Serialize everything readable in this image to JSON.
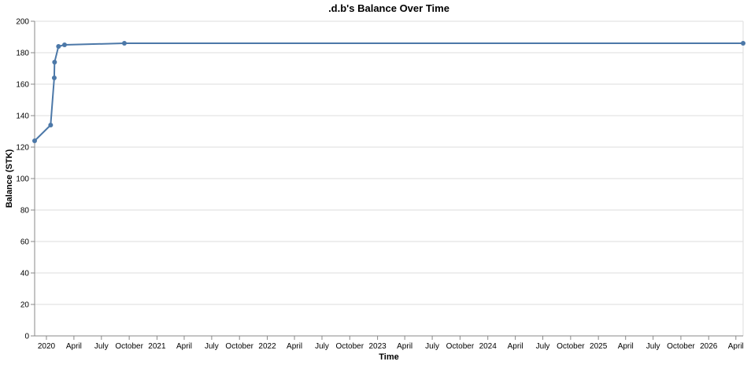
{
  "chart_data": {
    "type": "line",
    "title": ".d.b's Balance Over Time",
    "xlabel": "Time",
    "ylabel": "Balance (STK)",
    "ylim": [
      0,
      200
    ],
    "yticks": [
      0,
      20,
      40,
      60,
      80,
      100,
      120,
      140,
      160,
      180,
      200
    ],
    "xlim": [
      "2019-11-23",
      "2026-04-25"
    ],
    "xticks": [
      {
        "date": "2020-01-01",
        "label": "2020"
      },
      {
        "date": "2020-04-01",
        "label": "April"
      },
      {
        "date": "2020-07-01",
        "label": "July"
      },
      {
        "date": "2020-10-01",
        "label": "October"
      },
      {
        "date": "2021-01-01",
        "label": "2021"
      },
      {
        "date": "2021-04-01",
        "label": "April"
      },
      {
        "date": "2021-07-01",
        "label": "July"
      },
      {
        "date": "2021-10-01",
        "label": "October"
      },
      {
        "date": "2022-01-01",
        "label": "2022"
      },
      {
        "date": "2022-04-01",
        "label": "April"
      },
      {
        "date": "2022-07-01",
        "label": "July"
      },
      {
        "date": "2022-10-01",
        "label": "October"
      },
      {
        "date": "2023-01-01",
        "label": "2023"
      },
      {
        "date": "2023-04-01",
        "label": "April"
      },
      {
        "date": "2023-07-01",
        "label": "July"
      },
      {
        "date": "2023-10-01",
        "label": "October"
      },
      {
        "date": "2024-01-01",
        "label": "2024"
      },
      {
        "date": "2024-04-01",
        "label": "April"
      },
      {
        "date": "2024-07-01",
        "label": "July"
      },
      {
        "date": "2024-10-01",
        "label": "October"
      },
      {
        "date": "2025-01-01",
        "label": "2025"
      },
      {
        "date": "2025-04-01",
        "label": "April"
      },
      {
        "date": "2025-07-01",
        "label": "July"
      },
      {
        "date": "2025-10-01",
        "label": "October"
      },
      {
        "date": "2026-01-01",
        "label": "2026"
      },
      {
        "date": "2026-04-01",
        "label": "April"
      }
    ],
    "grid": true,
    "color": "#4c78a8",
    "series": [
      {
        "x": [
          "2019-11-23",
          "2020-01-15",
          "2020-01-27",
          "2020-01-28",
          "2020-02-10",
          "2020-03-01",
          "2020-09-15",
          "2026-04-25"
        ],
        "y": [
          124,
          134,
          164,
          174,
          184,
          185,
          186,
          186
        ]
      }
    ]
  }
}
